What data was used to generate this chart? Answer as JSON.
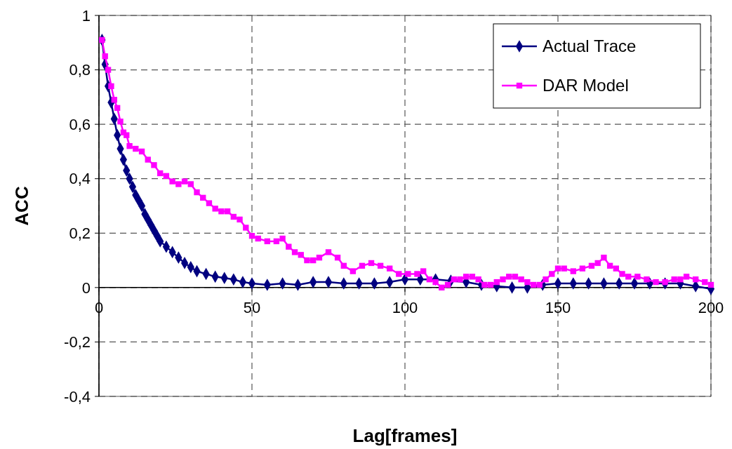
{
  "chart_data": {
    "type": "line",
    "xlabel": "Lag[frames]",
    "ylabel": "ACC",
    "xlim": [
      0,
      200
    ],
    "xticks": [
      0,
      50,
      100,
      150,
      200
    ],
    "ylim": [
      -0.4,
      1
    ],
    "yticks": [
      {
        "value": -0.4,
        "label": "-0,4"
      },
      {
        "value": -0.2,
        "label": "-0,2"
      },
      0,
      {
        "value": 0.2,
        "label": "0,2"
      },
      {
        "value": 0.4,
        "label": "0,4"
      },
      {
        "value": 0.6,
        "label": "0,6"
      },
      {
        "value": 0.8,
        "label": "0,8"
      },
      1
    ],
    "grid": true,
    "legend": "top right",
    "series": [
      {
        "name": "Actual Trace",
        "color": "#000080",
        "marker": "diamond",
        "x": [
          1,
          2,
          3,
          4,
          5,
          6,
          7,
          8,
          9,
          10,
          11,
          12,
          13,
          14,
          15,
          16,
          17,
          18,
          19,
          20,
          22,
          24,
          26,
          28,
          30,
          32,
          35,
          38,
          41,
          44,
          47,
          50,
          55,
          60,
          65,
          70,
          75,
          80,
          85,
          90,
          95,
          100,
          105,
          110,
          115,
          120,
          125,
          130,
          135,
          140,
          145,
          150,
          155,
          160,
          165,
          170,
          175,
          180,
          185,
          190,
          195,
          200
        ],
        "values": [
          0.91,
          0.82,
          0.74,
          0.68,
          0.62,
          0.56,
          0.51,
          0.47,
          0.43,
          0.4,
          0.37,
          0.34,
          0.32,
          0.3,
          0.27,
          0.25,
          0.23,
          0.21,
          0.19,
          0.17,
          0.15,
          0.13,
          0.11,
          0.09,
          0.075,
          0.06,
          0.05,
          0.04,
          0.035,
          0.03,
          0.02,
          0.015,
          0.01,
          0.015,
          0.01,
          0.02,
          0.02,
          0.015,
          0.015,
          0.015,
          0.02,
          0.03,
          0.03,
          0.03,
          0.025,
          0.02,
          0.01,
          0.005,
          0,
          0,
          0.01,
          0.015,
          0.015,
          0.015,
          0.015,
          0.015,
          0.015,
          0.015,
          0.015,
          0.015,
          0.005,
          -0.005
        ]
      },
      {
        "name": "DAR Model",
        "color": "#ff00ff",
        "marker": "square",
        "x": [
          1,
          2,
          3,
          4,
          5,
          6,
          7,
          8,
          9,
          10,
          12,
          14,
          16,
          18,
          20,
          22,
          24,
          26,
          28,
          30,
          32,
          34,
          36,
          38,
          40,
          42,
          44,
          46,
          48,
          50,
          52,
          55,
          58,
          60,
          62,
          64,
          66,
          68,
          70,
          72,
          75,
          78,
          80,
          83,
          86,
          89,
          92,
          95,
          98,
          101,
          104,
          106,
          108,
          110,
          112,
          114,
          116,
          118,
          120,
          122,
          124,
          126,
          128,
          130,
          132,
          134,
          136,
          138,
          140,
          142,
          144,
          146,
          148,
          150,
          152,
          155,
          158,
          161,
          163,
          165,
          167,
          169,
          171,
          173,
          176,
          179,
          182,
          185,
          188,
          190,
          192,
          195,
          198,
          200
        ],
        "values": [
          0.91,
          0.85,
          0.8,
          0.74,
          0.69,
          0.66,
          0.61,
          0.57,
          0.56,
          0.52,
          0.51,
          0.5,
          0.47,
          0.45,
          0.42,
          0.41,
          0.39,
          0.38,
          0.39,
          0.38,
          0.35,
          0.33,
          0.31,
          0.29,
          0.28,
          0.28,
          0.26,
          0.25,
          0.22,
          0.19,
          0.18,
          0.17,
          0.17,
          0.18,
          0.15,
          0.13,
          0.12,
          0.1,
          0.1,
          0.11,
          0.13,
          0.11,
          0.08,
          0.06,
          0.08,
          0.09,
          0.08,
          0.07,
          0.05,
          0.05,
          0.05,
          0.06,
          0.03,
          0.02,
          0,
          0.01,
          0.03,
          0.03,
          0.04,
          0.04,
          0.03,
          0.01,
          0.01,
          0.02,
          0.03,
          0.04,
          0.04,
          0.03,
          0.02,
          0.01,
          0.01,
          0.03,
          0.05,
          0.07,
          0.07,
          0.06,
          0.07,
          0.08,
          0.09,
          0.11,
          0.08,
          0.07,
          0.05,
          0.04,
          0.04,
          0.03,
          0.02,
          0.02,
          0.03,
          0.03,
          0.04,
          0.03,
          0.02,
          0.01
        ]
      }
    ]
  }
}
